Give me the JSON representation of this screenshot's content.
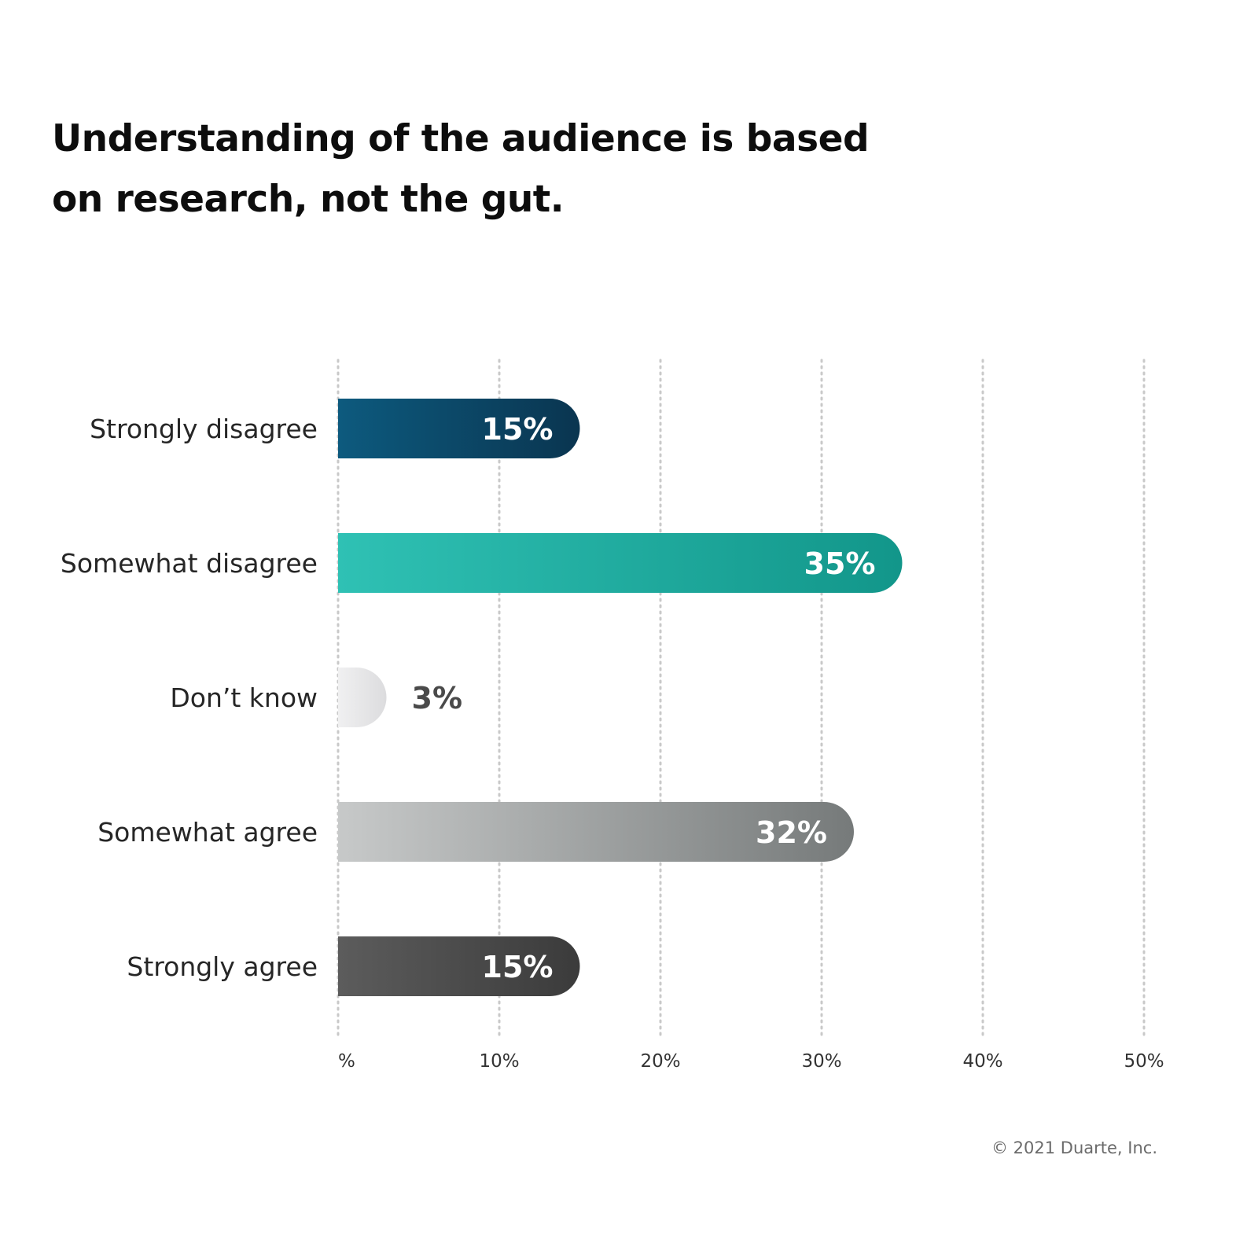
{
  "chart_data": {
    "type": "bar",
    "orientation": "horizontal",
    "title": "Understanding of the audience is based on research, not the gut.",
    "categories": [
      "Strongly disagree",
      "Somewhat disagree",
      "Don’t know",
      "Somewhat agree",
      "Strongly agree"
    ],
    "values": [
      15,
      35,
      3,
      32,
      15
    ],
    "value_labels": [
      "15%",
      "35%",
      "3%",
      "32%",
      "15%"
    ],
    "xlim": [
      0,
      50
    ],
    "x_ticks": [
      0,
      10,
      20,
      30,
      40,
      50
    ],
    "x_tick_labels": [
      "%",
      "10%",
      "20%",
      "30%",
      "40%",
      "50%"
    ],
    "grid": "vertical-dotted",
    "bar_colors": [
      [
        "#0d5a7e",
        "#0a3550"
      ],
      [
        "#2fc1b4",
        "#12968a"
      ],
      [
        "#f0f0f1",
        "#dcdcde"
      ],
      [
        "#c7c9c9",
        "#767a7a"
      ],
      [
        "#5c5c5c",
        "#3b3b3b"
      ]
    ],
    "label_colors": [
      "#ffffff",
      "#ffffff",
      "#4a4a4a",
      "#ffffff",
      "#ffffff"
    ]
  },
  "footer": {
    "copyright": "© 2021 Duarte, Inc."
  }
}
